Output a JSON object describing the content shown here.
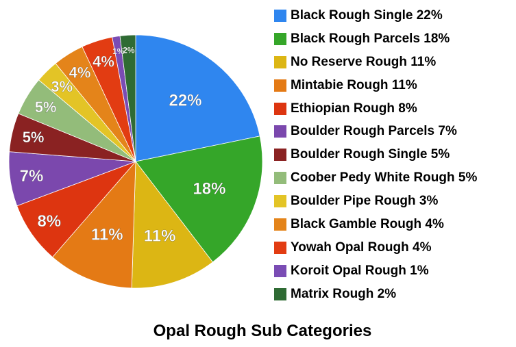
{
  "chart_data": {
    "type": "pie",
    "title": "Opal Rough Sub Categories",
    "legend_position": "right",
    "slices": [
      {
        "label": "Black Rough Single",
        "value": 22,
        "display": "22%",
        "legend": "Black Rough Single 22%",
        "color": "#2f86ef"
      },
      {
        "label": "Black Rough Parcels",
        "value": 18,
        "display": "18%",
        "legend": "Black Rough Parcels 18%",
        "color": "#35a629"
      },
      {
        "label": "No Reserve Rough",
        "value": 11,
        "display": "11%",
        "legend": "No Reserve Rough 11%",
        "color": "#dcb614"
      },
      {
        "label": "Mintabie Rough",
        "value": 11,
        "display": "11%",
        "legend": "Mintabie Rough 11%",
        "color": "#e47a15"
      },
      {
        "label": "Ethiopian Rough",
        "value": 8,
        "display": "8%",
        "legend": "Ethiopian Rough 8%",
        "color": "#dd3510"
      },
      {
        "label": "Boulder Rough Parcels",
        "value": 7,
        "display": "7%",
        "legend": "Boulder Rough Parcels 7%",
        "color": "#7b48ad"
      },
      {
        "label": "Boulder Rough Single",
        "value": 5,
        "display": "5%",
        "legend": "Boulder Rough Single 5%",
        "color": "#8a2222"
      },
      {
        "label": "Coober Pedy White Rough",
        "value": 5,
        "display": "5%",
        "legend": "Coober Pedy White Rough 5%",
        "color": "#93bc7a"
      },
      {
        "label": "Boulder Pipe Rough",
        "value": 3,
        "display": "3%",
        "legend": "Boulder Pipe Rough 3%",
        "color": "#e3c426"
      },
      {
        "label": "Black Gamble Rough",
        "value": 4,
        "display": "4%",
        "legend": "Black Gamble Rough 4%",
        "color": "#e4841a"
      },
      {
        "label": "Yowah Opal Rough",
        "value": 4,
        "display": "4%",
        "legend": "Yowah Opal Rough 4%",
        "color": "#e23c12"
      },
      {
        "label": "Koroit Opal Rough",
        "value": 1,
        "display": "1%",
        "legend": "Koroit Opal Rough 1%",
        "color": "#7a4cb4"
      },
      {
        "label": "Matrix Rough",
        "value": 2,
        "display": "2%",
        "legend": "Matrix Rough 2%",
        "color": "#2f6b34"
      }
    ]
  }
}
